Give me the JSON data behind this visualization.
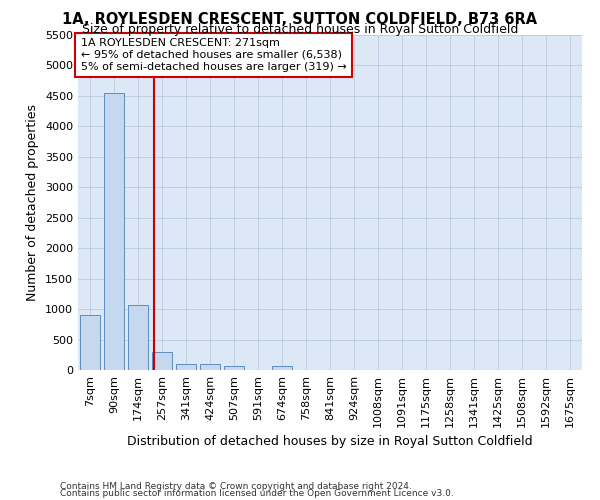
{
  "title": "1A, ROYLESDEN CRESCENT, SUTTON COLDFIELD, B73 6RA",
  "subtitle": "Size of property relative to detached houses in Royal Sutton Coldfield",
  "xlabel": "Distribution of detached houses by size in Royal Sutton Coldfield",
  "ylabel": "Number of detached properties",
  "footnote1": "Contains HM Land Registry data © Crown copyright and database right 2024.",
  "footnote2": "Contains public sector information licensed under the Open Government Licence v3.0.",
  "categories": [
    "7sqm",
    "90sqm",
    "174sqm",
    "257sqm",
    "341sqm",
    "424sqm",
    "507sqm",
    "591sqm",
    "674sqm",
    "758sqm",
    "841sqm",
    "924sqm",
    "1008sqm",
    "1091sqm",
    "1175sqm",
    "1258sqm",
    "1341sqm",
    "1425sqm",
    "1508sqm",
    "1592sqm",
    "1675sqm"
  ],
  "values": [
    900,
    4550,
    1075,
    300,
    100,
    100,
    70,
    0,
    60,
    0,
    0,
    0,
    0,
    0,
    0,
    0,
    0,
    0,
    0,
    0,
    0
  ],
  "bar_color": "#c5d8ee",
  "bar_edge_color": "#5b8ec4",
  "vline_pos": 2.65,
  "vline_color": "#cc0000",
  "annotation_line1": "1A ROYLESDEN CRESCENT: 271sqm",
  "annotation_line2": "← 95% of detached houses are smaller (6,538)",
  "annotation_line3": "5% of semi-detached houses are larger (319) →",
  "annotation_box_color": "#cc0000",
  "ylim": [
    0,
    5500
  ],
  "yticks": [
    0,
    500,
    1000,
    1500,
    2000,
    2500,
    3000,
    3500,
    4000,
    4500,
    5000,
    5500
  ],
  "grid_color": "#c0cfe0",
  "bg_color": "#dce8f5",
  "title_fontsize": 10.5,
  "subtitle_fontsize": 9,
  "axis_label_fontsize": 9,
  "tick_fontsize": 8,
  "annotation_fontsize": 8,
  "footnote_fontsize": 6.5
}
